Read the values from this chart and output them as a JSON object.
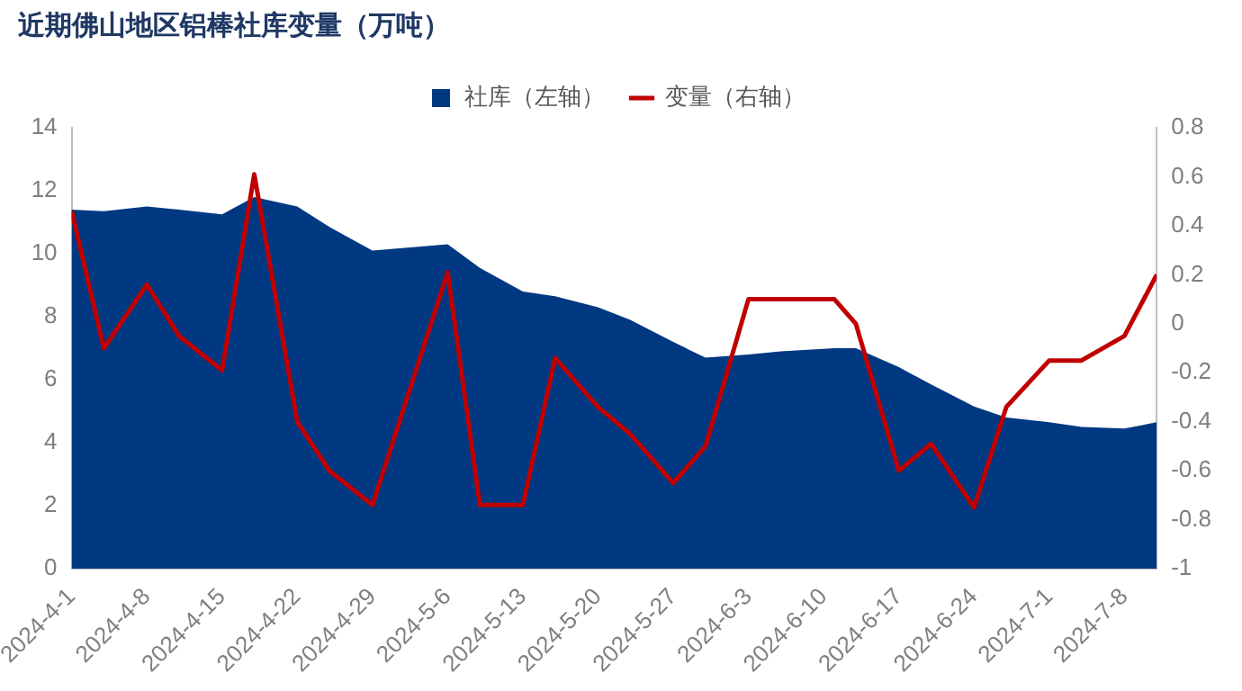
{
  "chart_data": {
    "type": "area",
    "title": "近期佛山地区铝棒社库变量（万吨）",
    "x": [
      "2024-04-01",
      "2024-04-04",
      "2024-04-08",
      "2024-04-11",
      "2024-04-15",
      "2024-04-18",
      "2024-04-22",
      "2024-04-25",
      "2024-04-29",
      "2024-05-06",
      "2024-05-09",
      "2024-05-13",
      "2024-05-16",
      "2024-05-20",
      "2024-05-23",
      "2024-05-27",
      "2024-05-30",
      "2024-06-03",
      "2024-06-06",
      "2024-06-11",
      "2024-06-13",
      "2024-06-17",
      "2024-06-20",
      "2024-06-24",
      "2024-06-27",
      "2024-07-01",
      "2024-07-04",
      "2024-07-08",
      "2024-07-11"
    ],
    "series": [
      {
        "name": "社库（左轴）",
        "type": "area",
        "color": "#003882",
        "values": [
          11.4,
          11.35,
          11.5,
          11.4,
          11.25,
          11.8,
          11.5,
          10.85,
          10.1,
          10.3,
          9.55,
          8.8,
          8.65,
          8.3,
          7.9,
          7.2,
          6.7,
          6.8,
          6.9,
          7.0,
          7.0,
          6.4,
          5.85,
          5.15,
          4.8,
          4.65,
          4.5,
          4.45,
          4.65
        ]
      },
      {
        "name": "变量（右轴）",
        "type": "line",
        "axis": "y2",
        "color": "#c00000",
        "values": [
          0.46,
          -0.1,
          0.16,
          -0.05,
          -0.19,
          0.61,
          -0.4,
          -0.6,
          -0.74,
          0.21,
          -0.74,
          -0.74,
          -0.14,
          -0.34,
          -0.45,
          -0.65,
          -0.5,
          0.1,
          0.1,
          0.1,
          0.0,
          -0.6,
          -0.49,
          -0.75,
          -0.34,
          -0.15,
          -0.15,
          -0.05,
          0.2
        ]
      }
    ],
    "xlim": [
      "2024-04-01",
      "2024-07-11"
    ],
    "xticks": [
      {
        "value": "2024-04-01",
        "label": "2024-4-1"
      },
      {
        "value": "2024-04-08",
        "label": "2024-4-8"
      },
      {
        "value": "2024-04-15",
        "label": "2024-4-15"
      },
      {
        "value": "2024-04-22",
        "label": "2024-4-22"
      },
      {
        "value": "2024-04-29",
        "label": "2024-4-29"
      },
      {
        "value": "2024-05-06",
        "label": "2024-5-6"
      },
      {
        "value": "2024-05-13",
        "label": "2024-5-13"
      },
      {
        "value": "2024-05-20",
        "label": "2024-5-20"
      },
      {
        "value": "2024-05-27",
        "label": "2024-5-27"
      },
      {
        "value": "2024-06-03",
        "label": "2024-6-3"
      },
      {
        "value": "2024-06-10",
        "label": "2024-6-10"
      },
      {
        "value": "2024-06-17",
        "label": "2024-6-17"
      },
      {
        "value": "2024-06-24",
        "label": "2024-6-24"
      },
      {
        "value": "2024-07-01",
        "label": "2024-7-1"
      },
      {
        "value": "2024-07-08",
        "label": "2024-7-8"
      }
    ],
    "ylim": [
      0,
      14
    ],
    "yticks": [
      0,
      2,
      4,
      6,
      8,
      10,
      12,
      14
    ],
    "y2lim": [
      -1,
      0.8
    ],
    "y2ticks": [
      -1,
      -0.8,
      -0.6,
      -0.4,
      -0.2,
      0,
      0.2,
      0.4,
      0.6,
      0.8
    ],
    "grid": false,
    "legend": "top",
    "marker": "none",
    "line_style": "solid"
  }
}
